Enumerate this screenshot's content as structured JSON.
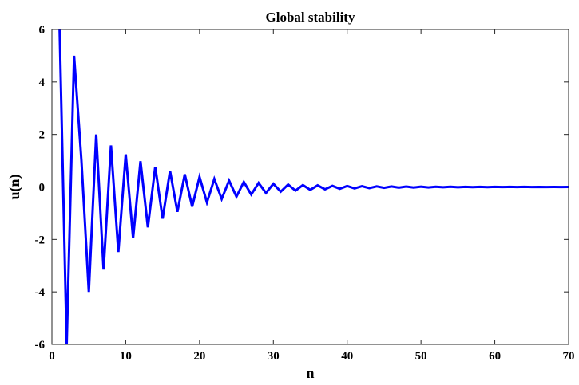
{
  "chart_data": {
    "type": "line",
    "title": "Global stability",
    "xlabel": "n",
    "ylabel": "u(n)",
    "xlim": [
      0,
      70
    ],
    "ylim": [
      -6,
      6
    ],
    "xticks": [
      0,
      10,
      20,
      30,
      40,
      50,
      60,
      70
    ],
    "xtick_labels": [
      "0",
      "10",
      "20",
      "30",
      "40",
      "50",
      "60",
      "70"
    ],
    "yticks": [
      -6,
      -4,
      -2,
      0,
      2,
      4,
      6
    ],
    "ytick_labels": [
      "-6",
      "-4",
      "-2",
      "0",
      "2",
      "4",
      "6"
    ],
    "grid": false,
    "series": [
      {
        "color": "#0000ff",
        "x": [
          1,
          2,
          3,
          4,
          5,
          6,
          7,
          8,
          9,
          10,
          11,
          12,
          13,
          14,
          15,
          16,
          17,
          18,
          19,
          20,
          21,
          22,
          23,
          24,
          25,
          26,
          27,
          28,
          29,
          30,
          31,
          32,
          33,
          34,
          35,
          36,
          37,
          38,
          39,
          40,
          41,
          42,
          43,
          44,
          45,
          46,
          47,
          48,
          49,
          50,
          51,
          52,
          53,
          54,
          55,
          56,
          57,
          58,
          59,
          60,
          61,
          62,
          63,
          64,
          65,
          66,
          67,
          68,
          69,
          70
        ],
        "y": [
          6.6,
          -6.0,
          5.0,
          1.0,
          -4.0,
          2.0,
          -3.15,
          1.58,
          -2.48,
          1.24,
          -1.95,
          0.98,
          -1.54,
          0.77,
          -1.21,
          0.61,
          -0.95,
          0.48,
          -0.75,
          0.38,
          -0.59,
          0.3,
          -0.46,
          0.24,
          -0.37,
          0.19,
          -0.29,
          0.15,
          -0.23,
          0.12,
          -0.18,
          0.09,
          -0.14,
          0.07,
          -0.11,
          0.06,
          -0.09,
          0.04,
          -0.07,
          0.035,
          -0.055,
          0.028,
          -0.043,
          0.022,
          -0.034,
          0.017,
          -0.027,
          0.013,
          -0.021,
          0.011,
          -0.017,
          0.008,
          -0.013,
          0.007,
          -0.01,
          0.005,
          -0.008,
          0.004,
          -0.006,
          0.003,
          -0.005,
          0.002,
          -0.004,
          0.002,
          -0.003,
          0.001,
          -0.002,
          0.001,
          -0.002,
          0.001
        ]
      }
    ]
  }
}
